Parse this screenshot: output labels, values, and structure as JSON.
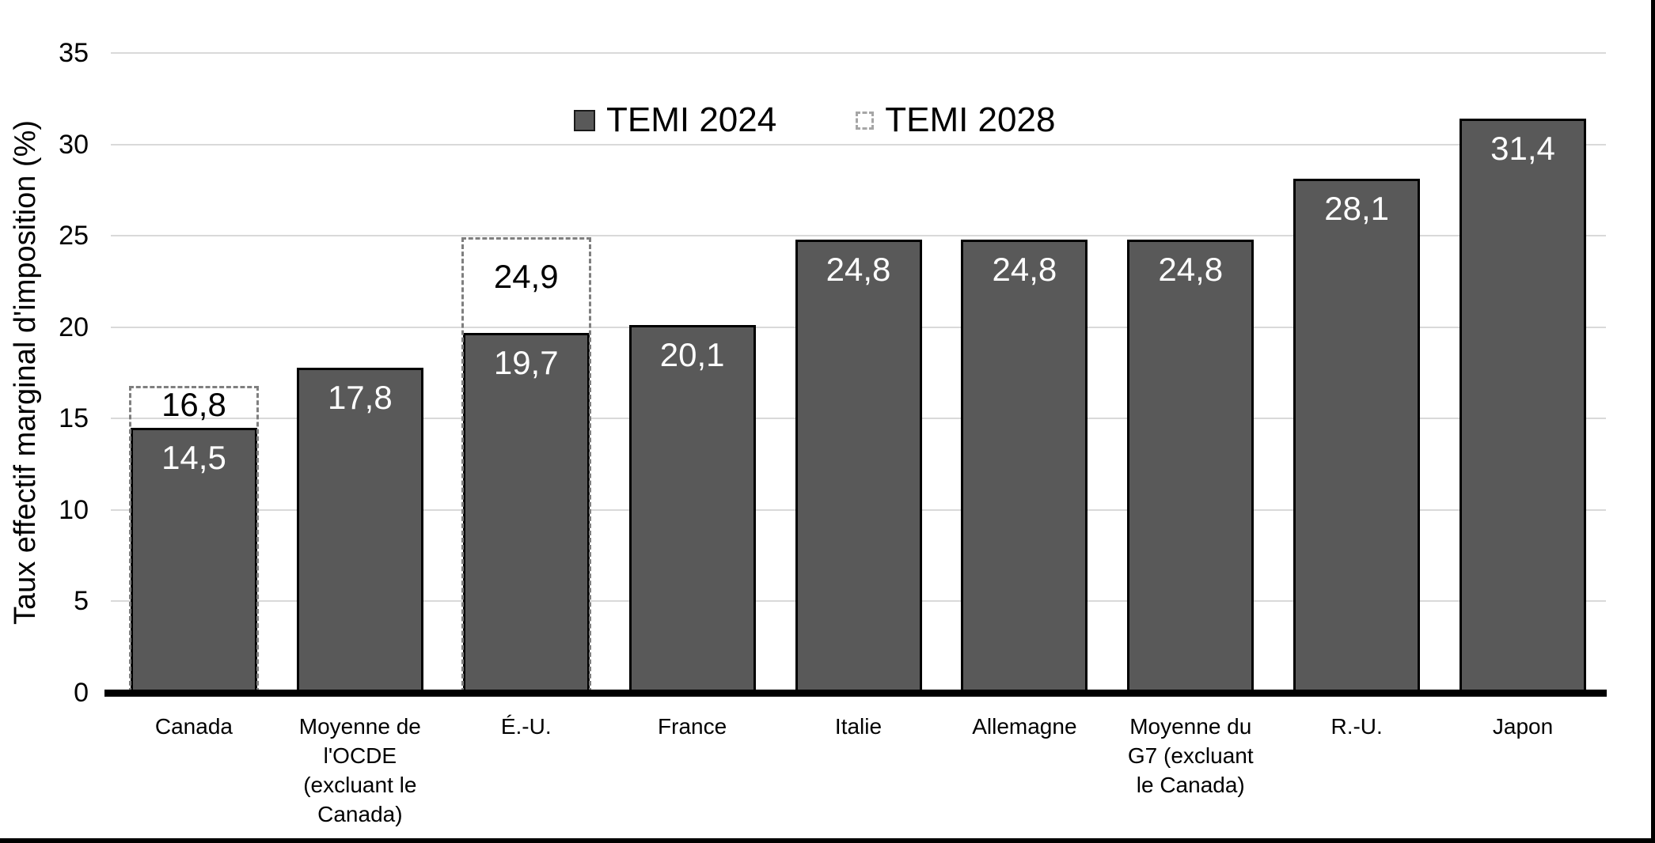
{
  "y_axis": {
    "title": "Taux effectif marginal d'imposition (%)",
    "ticks": [
      0,
      5,
      10,
      15,
      20,
      25,
      30,
      35
    ]
  },
  "legend": [
    {
      "label": "TEMI 2024",
      "swatch": "filled"
    },
    {
      "label": "TEMI 2028",
      "swatch": "dashed"
    }
  ],
  "chart_data": {
    "type": "bar",
    "title": "",
    "xlabel": "",
    "ylabel": "Taux effectif marginal d'imposition (%)",
    "ylim": [
      0,
      35
    ],
    "grid": true,
    "legend_position": "top-center",
    "categories": [
      "Canada",
      "Moyenne de l'OCDE (excluant le Canada)",
      "É.-U.",
      "France",
      "Italie",
      "Allemagne",
      "Moyenne du G7 (excluant le Canada)",
      "R.-U.",
      "Japon"
    ],
    "categories_display": [
      "Canada",
      "Moyenne de\nl'OCDE\n(excluant le\nCanada)",
      "É.-U.",
      "France",
      "Italie",
      "Allemagne",
      "Moyenne du\nG7 (excluant\nle Canada)",
      "R.-U.",
      "Japon"
    ],
    "series": [
      {
        "name": "TEMI 2024",
        "style": "solid",
        "values": [
          14.5,
          17.8,
          19.7,
          20.1,
          24.8,
          24.8,
          24.8,
          28.1,
          31.4
        ]
      },
      {
        "name": "TEMI 2028",
        "style": "dashed",
        "values": [
          16.8,
          null,
          24.9,
          null,
          null,
          null,
          null,
          null,
          null
        ]
      }
    ],
    "value_labels": [
      [
        "14,5",
        "17,8",
        "19,7",
        "20,1",
        "24,8",
        "24,8",
        "24,8",
        "28,1",
        "31,4"
      ],
      [
        "16,8",
        null,
        "24,9",
        null,
        null,
        null,
        null,
        null,
        null
      ]
    ],
    "colors": {
      "bar_fill": "#595959",
      "bar_border": "#000000",
      "dashed_border": "#7f7f7f",
      "legend_dashed": "#a6a6a6",
      "gridline": "#d9d9d9",
      "axis_line": "#000000",
      "label_in_bar": "#ffffff",
      "label_dashed": "#000000"
    }
  }
}
